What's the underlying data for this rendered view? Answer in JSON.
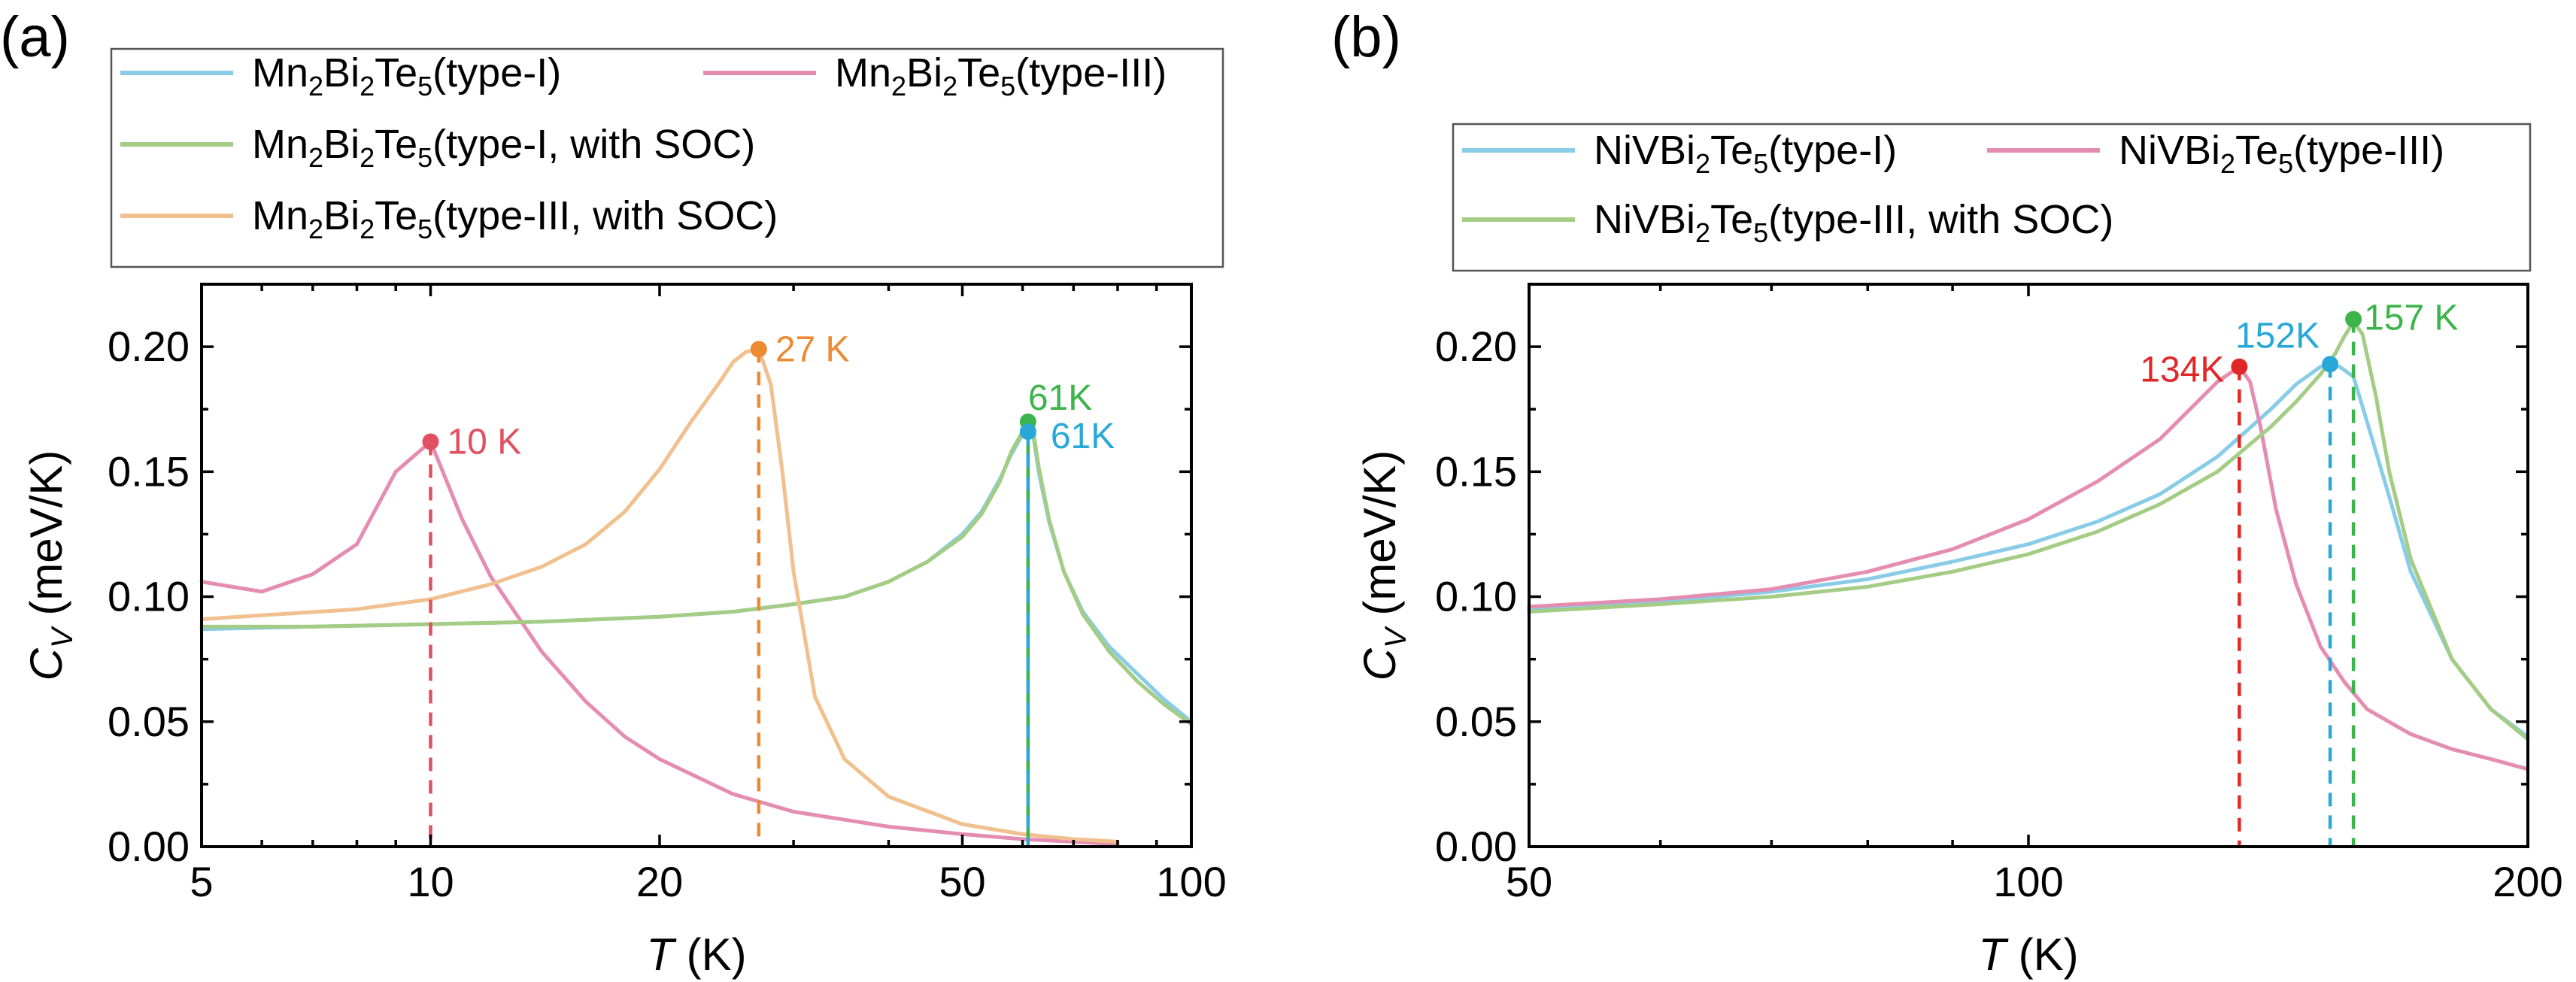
{
  "chart_data": [
    {
      "panel_label": "(a)",
      "type": "line",
      "xscale": "log",
      "xlim": [
        5,
        100
      ],
      "ylim": [
        0,
        0.225
      ],
      "xticks": [
        5,
        10,
        20,
        50,
        100
      ],
      "xtick_labels": [
        "5",
        "10",
        "20",
        "50",
        "100"
      ],
      "yticks": [
        0,
        0.05,
        0.1,
        0.15,
        0.2
      ],
      "ytick_labels": [
        "0.00",
        "0.05",
        "0.10",
        "0.15",
        "0.20"
      ],
      "xlabel": {
        "var": "T",
        "unit": " (K)"
      },
      "ylabel": {
        "var": "C",
        "sub": "V",
        "unit": " (meV/K)"
      },
      "legend": {
        "entries": [
          {
            "series": 0,
            "base": "Mn",
            "s1": "2",
            "mid": "Bi",
            "s2": "2",
            "tail": "Te",
            "s3": "5",
            "suffix": "(type-I)"
          },
          {
            "series": 1,
            "base": "Mn",
            "s1": "2",
            "mid": "Bi",
            "s2": "2",
            "tail": "Te",
            "s3": "5",
            "suffix": "(type-III)"
          },
          {
            "series": 2,
            "base": "Mn",
            "s1": "2",
            "mid": "Bi",
            "s2": "2",
            "tail": "Te",
            "s3": "5",
            "suffix": "(type-I, with SOC)"
          },
          {
            "series": 3,
            "base": "Mn",
            "s1": "2",
            "mid": "Bi",
            "s2": "2",
            "tail": "Te",
            "s3": "5",
            "suffix": "(type-III, with SOC)"
          }
        ]
      },
      "series": [
        {
          "name": "Mn2Bi2Te5(type-I)",
          "color": "#88cce8",
          "x": [
            5,
            7,
            10,
            14,
            20,
            25,
            30,
            35,
            40,
            45,
            50,
            53,
            56,
            58,
            60,
            61,
            62,
            63,
            65,
            68,
            72,
            78,
            85,
            92,
            100
          ],
          "y": [
            0.087,
            0.088,
            0.089,
            0.09,
            0.092,
            0.094,
            0.097,
            0.1,
            0.106,
            0.114,
            0.125,
            0.134,
            0.147,
            0.157,
            0.165,
            0.168,
            0.164,
            0.15,
            0.13,
            0.11,
            0.094,
            0.08,
            0.069,
            0.059,
            0.05
          ]
        },
        {
          "name": "Mn2Bi2Te5(type-III)",
          "color": "#e58db0",
          "x": [
            5,
            6,
            7,
            8,
            9,
            10,
            11,
            12,
            14,
            16,
            18,
            20,
            25,
            30,
            40,
            50,
            60,
            70,
            80
          ],
          "y": [
            0.106,
            0.102,
            0.109,
            0.121,
            0.15,
            0.162,
            0.131,
            0.108,
            0.078,
            0.058,
            0.044,
            0.035,
            0.021,
            0.014,
            0.008,
            0.005,
            0.003,
            0.002,
            0.001
          ]
        },
        {
          "name": "Mn2Bi2Te5(type-I, with SOC)",
          "color": "#a4cc84",
          "x": [
            5,
            7,
            10,
            14,
            20,
            25,
            30,
            35,
            40,
            45,
            50,
            53,
            56,
            58,
            60,
            61,
            62,
            63,
            65,
            68,
            72,
            78,
            85,
            92,
            100
          ],
          "y": [
            0.088,
            0.088,
            0.089,
            0.09,
            0.092,
            0.094,
            0.097,
            0.1,
            0.106,
            0.114,
            0.124,
            0.133,
            0.146,
            0.158,
            0.166,
            0.17,
            0.166,
            0.152,
            0.131,
            0.11,
            0.093,
            0.078,
            0.066,
            0.057,
            0.049
          ]
        },
        {
          "name": "Mn2Bi2Te5(type-III, with SOC)",
          "color": "#f1c08e",
          "x": [
            5,
            8,
            10,
            12,
            14,
            16,
            18,
            20,
            22,
            24,
            25,
            26,
            27,
            28,
            29,
            30,
            32,
            35,
            40,
            50,
            60,
            70,
            80
          ],
          "y": [
            0.091,
            0.095,
            0.099,
            0.105,
            0.112,
            0.121,
            0.134,
            0.151,
            0.17,
            0.186,
            0.194,
            0.198,
            0.199,
            0.185,
            0.15,
            0.11,
            0.06,
            0.035,
            0.02,
            0.009,
            0.005,
            0.003,
            0.002
          ]
        }
      ],
      "markers": [
        {
          "x": 10,
          "y": 0.162,
          "color": "#e05060",
          "label": "10 K",
          "dx": 22,
          "dy": 16,
          "anchor": "start"
        },
        {
          "x": 27,
          "y": 0.199,
          "color": "#ec8a32",
          "label": "27 K",
          "dx": 22,
          "dy": 16,
          "anchor": "start"
        },
        {
          "x": 61,
          "y": 0.17,
          "color": "#3cb44b",
          "label": "61K",
          "dx": 0,
          "dy": -16,
          "anchor": "start"
        },
        {
          "x": 61,
          "y": 0.166,
          "color": "#29a8d8",
          "label": "61K",
          "dx": 30,
          "dy": 22,
          "anchor": "start"
        }
      ]
    },
    {
      "panel_label": "(b)",
      "type": "line",
      "xscale": "log",
      "xlim": [
        50,
        200
      ],
      "ylim": [
        0,
        0.225
      ],
      "xticks": [
        50,
        100,
        200
      ],
      "xtick_labels": [
        "50",
        "100",
        "200"
      ],
      "yticks": [
        0,
        0.05,
        0.1,
        0.15,
        0.2
      ],
      "ytick_labels": [
        "0.00",
        "0.05",
        "0.10",
        "0.15",
        "0.20"
      ],
      "xlabel": {
        "var": "T",
        "unit": " (K)"
      },
      "ylabel": {
        "var": "C",
        "sub": "V",
        "unit": " (meV/K)"
      },
      "legend": {
        "entries": [
          {
            "series": 0,
            "base": "NiVBi",
            "s1": "2",
            "mid": "Te",
            "s2": "5",
            "tail": "",
            "s3": "",
            "suffix": "(type-I)"
          },
          {
            "series": 1,
            "base": "NiVBi",
            "s1": "2",
            "mid": "Te",
            "s2": "5",
            "tail": "",
            "s3": "",
            "suffix": "(type-III)"
          },
          {
            "series": 2,
            "base": "NiVBi",
            "s1": "2",
            "mid": "Te",
            "s2": "5",
            "tail": "",
            "s3": "",
            "suffix": "(type-III, with SOC)"
          }
        ]
      },
      "series": [
        {
          "name": "NiVBi2Te5(type-I)",
          "color": "#88cce8",
          "x": [
            50,
            60,
            70,
            80,
            90,
            100,
            110,
            120,
            130,
            140,
            145,
            150,
            152,
            154,
            157,
            160,
            165,
            170,
            180,
            190,
            200
          ],
          "y": [
            0.095,
            0.098,
            0.102,
            0.107,
            0.114,
            0.121,
            0.13,
            0.141,
            0.156,
            0.175,
            0.185,
            0.192,
            0.193,
            0.192,
            0.188,
            0.17,
            0.14,
            0.11,
            0.075,
            0.055,
            0.044
          ]
        },
        {
          "name": "NiVBi2Te5(type-III)",
          "color": "#e58db0",
          "x": [
            50,
            60,
            70,
            80,
            90,
            100,
            110,
            120,
            126,
            130,
            134,
            136,
            138,
            141,
            145,
            150,
            155,
            160,
            170,
            180,
            190,
            200
          ],
          "y": [
            0.096,
            0.099,
            0.103,
            0.11,
            0.119,
            0.131,
            0.146,
            0.163,
            0.177,
            0.186,
            0.192,
            0.186,
            0.168,
            0.135,
            0.105,
            0.08,
            0.066,
            0.055,
            0.045,
            0.039,
            0.035,
            0.031
          ]
        },
        {
          "name": "NiVBi2Te5(type-III, with SOC)",
          "color": "#a4cc84",
          "x": [
            50,
            60,
            70,
            80,
            90,
            100,
            110,
            120,
            130,
            140,
            145,
            150,
            153,
            155,
            157,
            159,
            162,
            165,
            170,
            180,
            190,
            200
          ],
          "y": [
            0.094,
            0.097,
            0.1,
            0.104,
            0.11,
            0.117,
            0.126,
            0.137,
            0.15,
            0.168,
            0.178,
            0.189,
            0.197,
            0.204,
            0.21,
            0.205,
            0.18,
            0.15,
            0.115,
            0.075,
            0.055,
            0.043
          ]
        }
      ],
      "markers": [
        {
          "x": 134,
          "y": 0.192,
          "color": "#e02828",
          "label": "134K",
          "dx": -20,
          "dy": 20,
          "anchor": "end"
        },
        {
          "x": 152,
          "y": 0.193,
          "color": "#29a8d8",
          "label": "152K",
          "dx": -14,
          "dy": -22,
          "anchor": "end"
        },
        {
          "x": 157,
          "y": 0.211,
          "color": "#3cb44b",
          "label": "157 K",
          "dx": 14,
          "dy": 14,
          "anchor": "start"
        }
      ]
    }
  ]
}
